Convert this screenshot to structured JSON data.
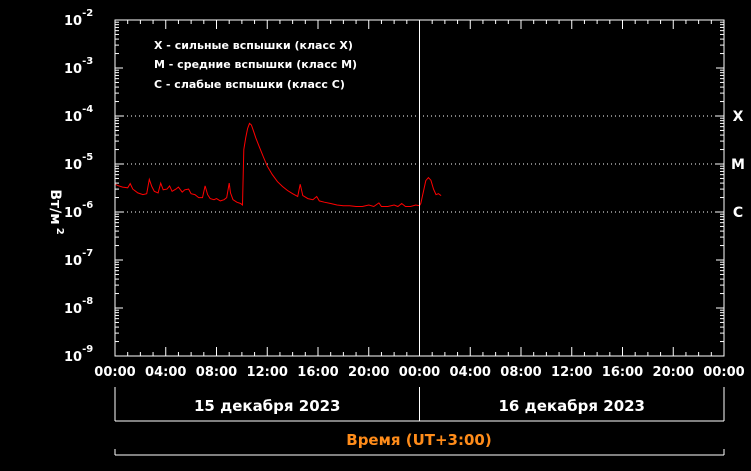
{
  "chart_data": {
    "type": "line",
    "title": "",
    "xlabel": "Время (UT+3:00)",
    "ylabel": "Вт/м",
    "ylabel_exp": "2",
    "yscale": "log",
    "ylim": [
      1e-09,
      0.01
    ],
    "xlim_hours": [
      0,
      48
    ],
    "y_ticks": [
      {
        "base": "10",
        "exp": "-2",
        "value": 0.01
      },
      {
        "base": "10",
        "exp": "-3",
        "value": 0.001
      },
      {
        "base": "10",
        "exp": "-4",
        "value": 0.0001
      },
      {
        "base": "10",
        "exp": "-5",
        "value": 1e-05
      },
      {
        "base": "10",
        "exp": "-6",
        "value": 1e-06
      },
      {
        "base": "10",
        "exp": "-7",
        "value": 1e-07
      },
      {
        "base": "10",
        "exp": "-8",
        "value": 1e-08
      },
      {
        "base": "10",
        "exp": "-9",
        "value": 1e-09
      }
    ],
    "x_ticks": [
      {
        "label": "00:00",
        "hour": 0
      },
      {
        "label": "04:00",
        "hour": 4
      },
      {
        "label": "08:00",
        "hour": 8
      },
      {
        "label": "12:00",
        "hour": 12
      },
      {
        "label": "16:00",
        "hour": 16
      },
      {
        "label": "20:00",
        "hour": 20
      },
      {
        "label": "00:00",
        "hour": 24
      },
      {
        "label": "04:00",
        "hour": 28
      },
      {
        "label": "08:00",
        "hour": 32
      },
      {
        "label": "12:00",
        "hour": 36
      },
      {
        "label": "16:00",
        "hour": 40
      },
      {
        "label": "20:00",
        "hour": 44
      },
      {
        "label": "00:00",
        "hour": 48
      }
    ],
    "flare_classes": [
      {
        "label": "X",
        "value": 0.0001
      },
      {
        "label": "M",
        "value": 1e-05
      },
      {
        "label": "C",
        "value": 1e-06
      }
    ],
    "legend": [
      "X - сильные вспышки (класс X)",
      "M - средние вспышки (класс M)",
      "C - слабые вспышки (класс C)"
    ],
    "dates": [
      {
        "label": "15 декабря 2023",
        "start_hour": 0,
        "end_hour": 24
      },
      {
        "label": "16 декабря 2023",
        "start_hour": 24,
        "end_hour": 48
      }
    ],
    "day_divider_hour": 24,
    "grid": "dotted at class levels",
    "series": [
      {
        "color": "#ff0000",
        "points": [
          [
            0.0,
            3.8e-06
          ],
          [
            0.3,
            3.5e-06
          ],
          [
            0.6,
            3.3e-06
          ],
          [
            1.0,
            3.2e-06
          ],
          [
            1.2,
            3.9e-06
          ],
          [
            1.4,
            3e-06
          ],
          [
            1.8,
            2.5e-06
          ],
          [
            2.2,
            2.3e-06
          ],
          [
            2.5,
            2.4e-06
          ],
          [
            2.7,
            4.8e-06
          ],
          [
            2.9,
            3.4e-06
          ],
          [
            3.1,
            2.7e-06
          ],
          [
            3.4,
            2.5e-06
          ],
          [
            3.6,
            4e-06
          ],
          [
            3.8,
            2.9e-06
          ],
          [
            4.1,
            3e-06
          ],
          [
            4.3,
            3.5e-06
          ],
          [
            4.5,
            2.7e-06
          ],
          [
            4.8,
            3e-06
          ],
          [
            5.0,
            3.3e-06
          ],
          [
            5.3,
            2.6e-06
          ],
          [
            5.5,
            2.9e-06
          ],
          [
            5.8,
            3e-06
          ],
          [
            6.0,
            2.4e-06
          ],
          [
            6.3,
            2.3e-06
          ],
          [
            6.6,
            2e-06
          ],
          [
            6.9,
            2e-06
          ],
          [
            7.1,
            3.5e-06
          ],
          [
            7.3,
            2.3e-06
          ],
          [
            7.5,
            1.9e-06
          ],
          [
            7.8,
            1.8e-06
          ],
          [
            8.0,
            1.9e-06
          ],
          [
            8.3,
            1.7e-06
          ],
          [
            8.6,
            1.8e-06
          ],
          [
            8.8,
            2e-06
          ],
          [
            9.0,
            4e-06
          ],
          [
            9.1,
            2.5e-06
          ],
          [
            9.3,
            1.8e-06
          ],
          [
            9.6,
            1.6e-06
          ],
          [
            9.9,
            1.5e-06
          ],
          [
            10.05,
            1.4e-06
          ],
          [
            10.15,
            2e-05
          ],
          [
            10.3,
            3.5e-05
          ],
          [
            10.45,
            5.5e-05
          ],
          [
            10.6,
            7e-05
          ],
          [
            10.75,
            6.5e-05
          ],
          [
            10.9,
            5e-05
          ],
          [
            11.1,
            3.5e-05
          ],
          [
            11.4,
            2.2e-05
          ],
          [
            11.7,
            1.4e-05
          ],
          [
            12.0,
            9e-06
          ],
          [
            12.4,
            6e-06
          ],
          [
            12.8,
            4.3e-06
          ],
          [
            13.2,
            3.4e-06
          ],
          [
            13.6,
            2.8e-06
          ],
          [
            14.0,
            2.4e-06
          ],
          [
            14.4,
            2.1e-06
          ],
          [
            14.6,
            3.8e-06
          ],
          [
            14.8,
            2.2e-06
          ],
          [
            15.2,
            1.9e-06
          ],
          [
            15.6,
            1.8e-06
          ],
          [
            15.9,
            2.1e-06
          ],
          [
            16.1,
            1.7e-06
          ],
          [
            16.5,
            1.6e-06
          ],
          [
            17.0,
            1.5e-06
          ],
          [
            17.5,
            1.4e-06
          ],
          [
            18.0,
            1.35e-06
          ],
          [
            18.5,
            1.35e-06
          ],
          [
            19.0,
            1.3e-06
          ],
          [
            19.5,
            1.3e-06
          ],
          [
            20.0,
            1.4e-06
          ],
          [
            20.4,
            1.3e-06
          ],
          [
            20.8,
            1.55e-06
          ],
          [
            21.0,
            1.3e-06
          ],
          [
            21.5,
            1.3e-06
          ],
          [
            22.0,
            1.4e-06
          ],
          [
            22.3,
            1.3e-06
          ],
          [
            22.6,
            1.5e-06
          ],
          [
            22.9,
            1.3e-06
          ],
          [
            23.3,
            1.3e-06
          ],
          [
            23.7,
            1.4e-06
          ],
          [
            24.0,
            1.35e-06
          ],
          [
            24.1,
            1.5e-06
          ],
          [
            24.3,
            2.6e-06
          ],
          [
            24.5,
            4.5e-06
          ],
          [
            24.7,
            5.2e-06
          ],
          [
            24.9,
            4.6e-06
          ],
          [
            25.1,
            3e-06
          ],
          [
            25.3,
            2.3e-06
          ],
          [
            25.5,
            2.4e-06
          ],
          [
            25.7,
            2.2e-06
          ]
        ]
      }
    ]
  }
}
